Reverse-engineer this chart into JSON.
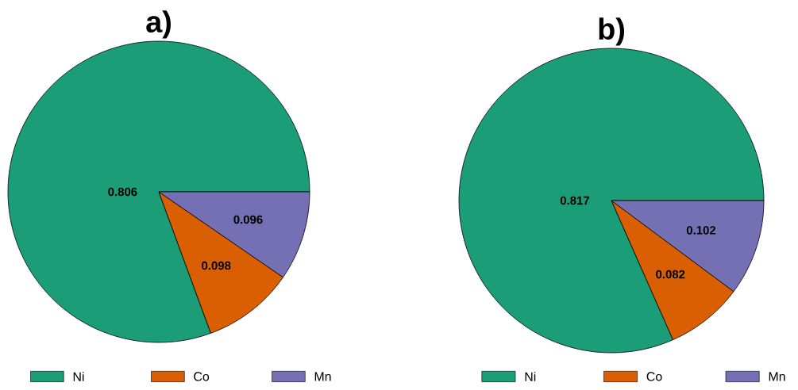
{
  "chart_data": [
    {
      "type": "pie",
      "title": "a)",
      "categories": [
        "Ni",
        "Co",
        "Mn"
      ],
      "values": [
        0.806,
        0.098,
        0.096
      ],
      "colors": [
        "#1b9e77",
        "#d95f02",
        "#7570b3"
      ],
      "data_labels": true,
      "legend": "bottom"
    },
    {
      "type": "pie",
      "title": "b)",
      "categories": [
        "Ni",
        "Co",
        "Mn"
      ],
      "values": [
        0.817,
        0.082,
        0.102
      ],
      "colors": [
        "#1b9e77",
        "#d95f02",
        "#7570b3"
      ],
      "data_labels": true,
      "legend": "bottom"
    }
  ]
}
